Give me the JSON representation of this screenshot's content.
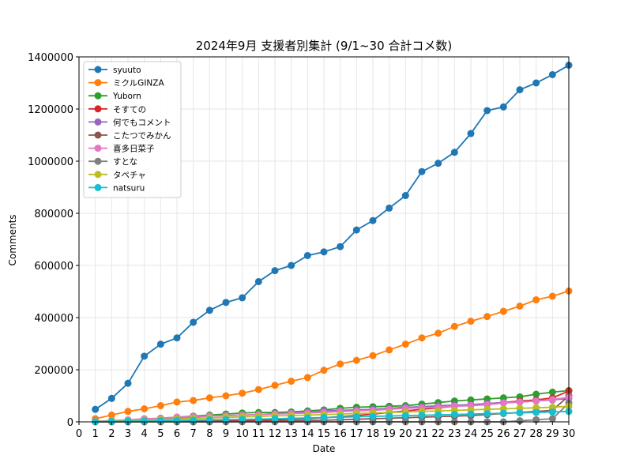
{
  "chart_data": {
    "type": "line",
    "title": "2024年9月 支援者別集計 (9/1~30 合計コメ数)",
    "xlabel": "Date",
    "ylabel": "Comments",
    "xlim": [
      0,
      30
    ],
    "ylim": [
      0,
      1400000
    ],
    "x_ticks": [
      0,
      1,
      2,
      3,
      4,
      5,
      6,
      7,
      8,
      9,
      10,
      11,
      12,
      13,
      14,
      15,
      16,
      17,
      18,
      19,
      20,
      21,
      22,
      23,
      24,
      25,
      26,
      27,
      28,
      29,
      30
    ],
    "y_ticks": [
      0,
      200000,
      400000,
      600000,
      800000,
      1000000,
      1200000,
      1400000
    ],
    "grid": true,
    "legend_position": "top-left",
    "x": [
      1,
      2,
      3,
      4,
      5,
      6,
      7,
      8,
      9,
      10,
      11,
      12,
      13,
      14,
      15,
      16,
      17,
      18,
      19,
      20,
      21,
      22,
      23,
      24,
      25,
      26,
      27,
      28,
      29,
      30
    ],
    "series": [
      {
        "name": "syuuto",
        "color": "#1f77b4",
        "values": [
          48000,
          90000,
          148000,
          252000,
          298000,
          322000,
          382000,
          428000,
          458000,
          476000,
          538000,
          580000,
          600000,
          638000,
          652000,
          672000,
          736000,
          772000,
          820000,
          868000,
          960000,
          992000,
          1034000,
          1106000,
          1194000,
          1208000,
          1274000,
          1300000,
          1332000,
          1368000
        ]
      },
      {
        "name": "ミクルGINZA",
        "color": "#ff7f0e",
        "values": [
          12000,
          26000,
          40000,
          50000,
          62000,
          76000,
          82000,
          92000,
          100000,
          110000,
          124000,
          140000,
          156000,
          170000,
          198000,
          222000,
          236000,
          254000,
          276000,
          298000,
          322000,
          340000,
          366000,
          386000,
          404000,
          424000,
          444000,
          468000,
          482000,
          502000
        ]
      },
      {
        "name": "Yuborn",
        "color": "#2ca02c",
        "values": [
          2000,
          4000,
          6000,
          10000,
          14000,
          18000,
          22000,
          26000,
          30000,
          34000,
          36000,
          36000,
          38000,
          42000,
          46000,
          52000,
          56000,
          58000,
          60000,
          62000,
          68000,
          74000,
          80000,
          84000,
          88000,
          92000,
          96000,
          106000,
          114000,
          120000
        ]
      },
      {
        "name": "そすての",
        "color": "#d62728",
        "values": [
          500,
          1000,
          1500,
          2000,
          2500,
          3000,
          3500,
          4000,
          4500,
          5000,
          6000,
          8000,
          10000,
          12000,
          16000,
          20000,
          24000,
          30000,
          36000,
          42000,
          48000,
          54000,
          60000,
          66000,
          70000,
          74000,
          80000,
          84000,
          92000,
          118000
        ]
      },
      {
        "name": "何でもコメント",
        "color": "#9467bd",
        "values": [
          1000,
          2500,
          5000,
          8000,
          10000,
          14000,
          18000,
          22000,
          24000,
          26000,
          28000,
          32000,
          34000,
          38000,
          42000,
          44000,
          46000,
          48000,
          52000,
          56000,
          58000,
          62000,
          64000,
          66000,
          70000,
          74000,
          76000,
          80000,
          84000,
          90000
        ]
      },
      {
        "name": "こたつでみかん",
        "color": "#8c564b",
        "values": [
          0,
          0,
          0,
          0,
          0,
          0,
          0,
          500,
          1000,
          1500,
          2000,
          3000,
          4000,
          5000,
          6000,
          8000,
          10000,
          12000,
          14000,
          16000,
          18000,
          20000,
          22000,
          24000,
          28000,
          32000,
          36000,
          40000,
          44000,
          100000
        ]
      },
      {
        "name": "喜多日菜子",
        "color": "#e377c2",
        "values": [
          2000,
          5000,
          8000,
          12000,
          14000,
          18000,
          20000,
          22000,
          24000,
          26000,
          28000,
          30000,
          32000,
          34000,
          36000,
          40000,
          42000,
          44000,
          48000,
          52000,
          54000,
          56000,
          60000,
          62000,
          66000,
          72000,
          76000,
          80000,
          86000,
          94000
        ]
      },
      {
        "name": "すとな",
        "color": "#7f7f7f",
        "values": [
          0,
          0,
          0,
          0,
          0,
          0,
          0,
          0,
          0,
          0,
          0,
          0,
          0,
          0,
          0,
          0,
          0,
          0,
          0,
          0,
          0,
          0,
          0,
          0,
          0,
          0,
          4000,
          8000,
          12000,
          72000
        ]
      },
      {
        "name": "タペチャ",
        "color": "#bcbd22",
        "values": [
          1000,
          3000,
          5000,
          7000,
          9000,
          11000,
          13000,
          15000,
          17000,
          19000,
          21000,
          23000,
          24000,
          26000,
          28000,
          30000,
          32000,
          34000,
          36000,
          38000,
          40000,
          42000,
          44000,
          46000,
          48000,
          50000,
          52000,
          54000,
          56000,
          60000
        ]
      },
      {
        "name": "natsuru",
        "color": "#17becf",
        "values": [
          500,
          1500,
          2500,
          3500,
          4500,
          5500,
          6500,
          7500,
          8500,
          9500,
          10500,
          12000,
          13500,
          15000,
          16500,
          18000,
          19500,
          21000,
          22500,
          24000,
          25500,
          27000,
          28500,
          30000,
          31500,
          33000,
          34500,
          36000,
          38000,
          40000
        ]
      }
    ]
  }
}
